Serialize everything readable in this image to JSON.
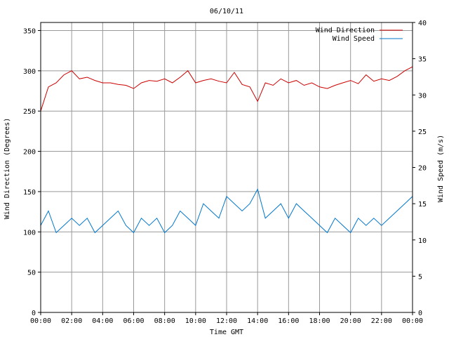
{
  "chart_data": {
    "type": "line",
    "title": "06/10/11",
    "xlabel": "Time GMT",
    "ylabel_left": "Wind Direction (Degrees)",
    "ylabel_right": "Wind Speed (m/s)",
    "x_ticks": [
      "00:00",
      "02:00",
      "04:00",
      "06:00",
      "08:00",
      "10:00",
      "12:00",
      "14:00",
      "16:00",
      "18:00",
      "20:00",
      "22:00",
      "00:00"
    ],
    "xlim_hours": [
      0,
      24
    ],
    "ylim_left": [
      0,
      360
    ],
    "yticks_left": [
      0,
      50,
      100,
      150,
      200,
      250,
      300,
      350
    ],
    "ylim_right": [
      0,
      40
    ],
    "yticks_right": [
      0,
      5,
      10,
      15,
      20,
      25,
      30,
      35,
      40
    ],
    "grid": true,
    "legend_position": "top-right",
    "series": [
      {
        "name": "Wind Direction",
        "axis": "left",
        "color": "#cc0000",
        "x_hours": [
          0,
          0.5,
          1,
          1.5,
          2,
          2.5,
          3,
          3.5,
          4,
          4.5,
          5,
          5.5,
          6,
          6.5,
          7,
          7.5,
          8,
          8.5,
          9,
          9.5,
          10,
          10.5,
          11,
          11.5,
          12,
          12.5,
          13,
          13.5,
          14,
          14.5,
          15,
          15.5,
          16,
          16.5,
          17,
          17.5,
          18,
          18.5,
          19,
          19.5,
          20,
          20.5,
          21,
          21.5,
          22,
          22.5,
          23,
          23.5,
          24
        ],
        "values": [
          250,
          280,
          285,
          295,
          300,
          290,
          292,
          288,
          285,
          285,
          283,
          282,
          278,
          285,
          288,
          287,
          290,
          285,
          292,
          300,
          285,
          288,
          290,
          287,
          285,
          298,
          283,
          280,
          262,
          285,
          282,
          290,
          285,
          288,
          282,
          285,
          280,
          278,
          282,
          285,
          288,
          284,
          295,
          287,
          290,
          288,
          293,
          300,
          305
        ]
      },
      {
        "name": "Wind Speed",
        "axis": "right",
        "color": "#0077cc",
        "x_hours": [
          0,
          0.5,
          1,
          1.5,
          2,
          2.5,
          3,
          3.5,
          4,
          4.5,
          5,
          5.5,
          6,
          6.5,
          7,
          7.5,
          8,
          8.5,
          9,
          9.5,
          10,
          10.5,
          11,
          11.5,
          12,
          12.5,
          13,
          13.5,
          14,
          14.5,
          15,
          15.5,
          16,
          16.5,
          17,
          17.5,
          18,
          18.5,
          19,
          19.5,
          20,
          20.5,
          21,
          21.5,
          22,
          22.5,
          23,
          23.5,
          24
        ],
        "values": [
          12,
          14,
          11,
          12,
          13,
          12,
          13,
          11,
          12,
          13,
          14,
          12,
          11,
          13,
          12,
          13,
          11,
          12,
          14,
          13,
          12,
          15,
          14,
          13,
          16,
          15,
          14,
          15,
          17,
          13,
          14,
          15,
          13,
          15,
          14,
          13,
          12,
          11,
          13,
          12,
          11,
          13,
          12,
          13,
          12,
          13,
          14,
          15,
          16
        ]
      }
    ]
  }
}
